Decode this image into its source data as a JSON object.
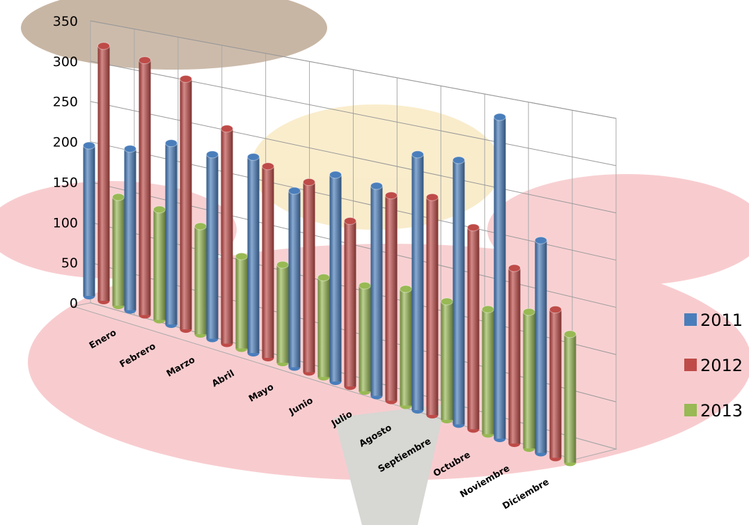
{
  "chart_data": {
    "type": "bar3d",
    "categories": [
      "Enero",
      "Febrero",
      "Marzo",
      "Abril",
      "Mayo",
      "Junio",
      "Julio",
      "Agosto",
      "Septiembre",
      "Octubre",
      "Noviembre",
      "Diciembre"
    ],
    "series": [
      {
        "name": "2011",
        "color": "#4a7ebb",
        "values": [
          180,
          190,
          210,
          210,
          220,
          195,
          225,
          225,
          270,
          275,
          330,
          215
        ]
      },
      {
        "name": "2012",
        "color": "#be4b48",
        "values": [
          305,
          300,
          290,
          245,
          215,
          210,
          180,
          220,
          230,
          210,
          180,
          150
        ]
      },
      {
        "name": "2013",
        "color": "#98b954",
        "values": [
          130,
          130,
          125,
          105,
          110,
          110,
          115,
          125,
          125,
          130,
          140,
          130
        ]
      }
    ],
    "ylim": [
      0,
      350
    ],
    "yticks": [
      0,
      50,
      100,
      150,
      200,
      250,
      300,
      350
    ],
    "grid": true,
    "legend": "right"
  }
}
